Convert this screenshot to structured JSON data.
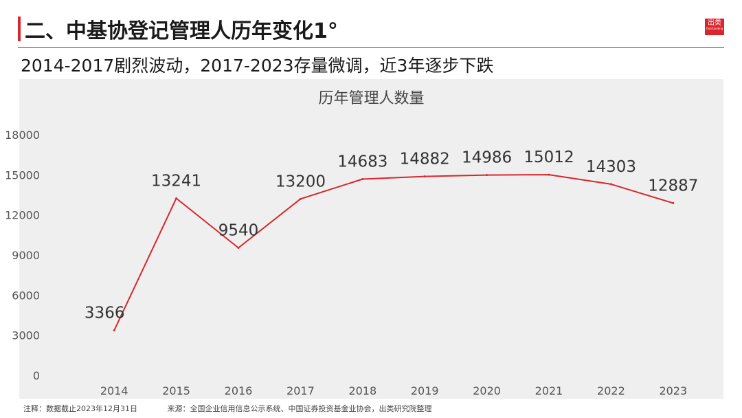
{
  "header": {
    "title": "二、中基协登记管理人历年变化1°",
    "subtitle": "2014-2017剧烈波动，2017-2023存量微调，近3年逐步下跌",
    "logo_text": "出类",
    "logo_subtext": "Outstanding"
  },
  "colors": {
    "accent": "#d9262c",
    "line": "#d9262c",
    "panel": "#efefef"
  },
  "chart_data": {
    "type": "line",
    "title": "历年管理人数量",
    "xlabel": "",
    "ylabel": "",
    "x": [
      "2014",
      "2015",
      "2016",
      "2017",
      "2018",
      "2019",
      "2020",
      "2021",
      "2022",
      "2023"
    ],
    "series": [
      {
        "values": [
          3366,
          13241,
          9540,
          13200,
          14683,
          14882,
          14986,
          15012,
          14303,
          12887
        ]
      }
    ],
    "ylim": [
      0,
      18000
    ],
    "yticks": [
      "0",
      "3000",
      "6000",
      "9000",
      "12000",
      "15000",
      "18000"
    ],
    "data_labels": [
      "3366",
      "13241",
      "9540",
      "13200",
      "14683",
      "14882",
      "14986",
      "15012",
      "14303",
      "12887"
    ],
    "grid": false,
    "legend": "none"
  },
  "footer": {
    "note": "注释：数据截止2023年12月31日",
    "source": "来源：全国企业信用信息公示系统、中国证券投资基金业协会，出类研究院整理"
  }
}
